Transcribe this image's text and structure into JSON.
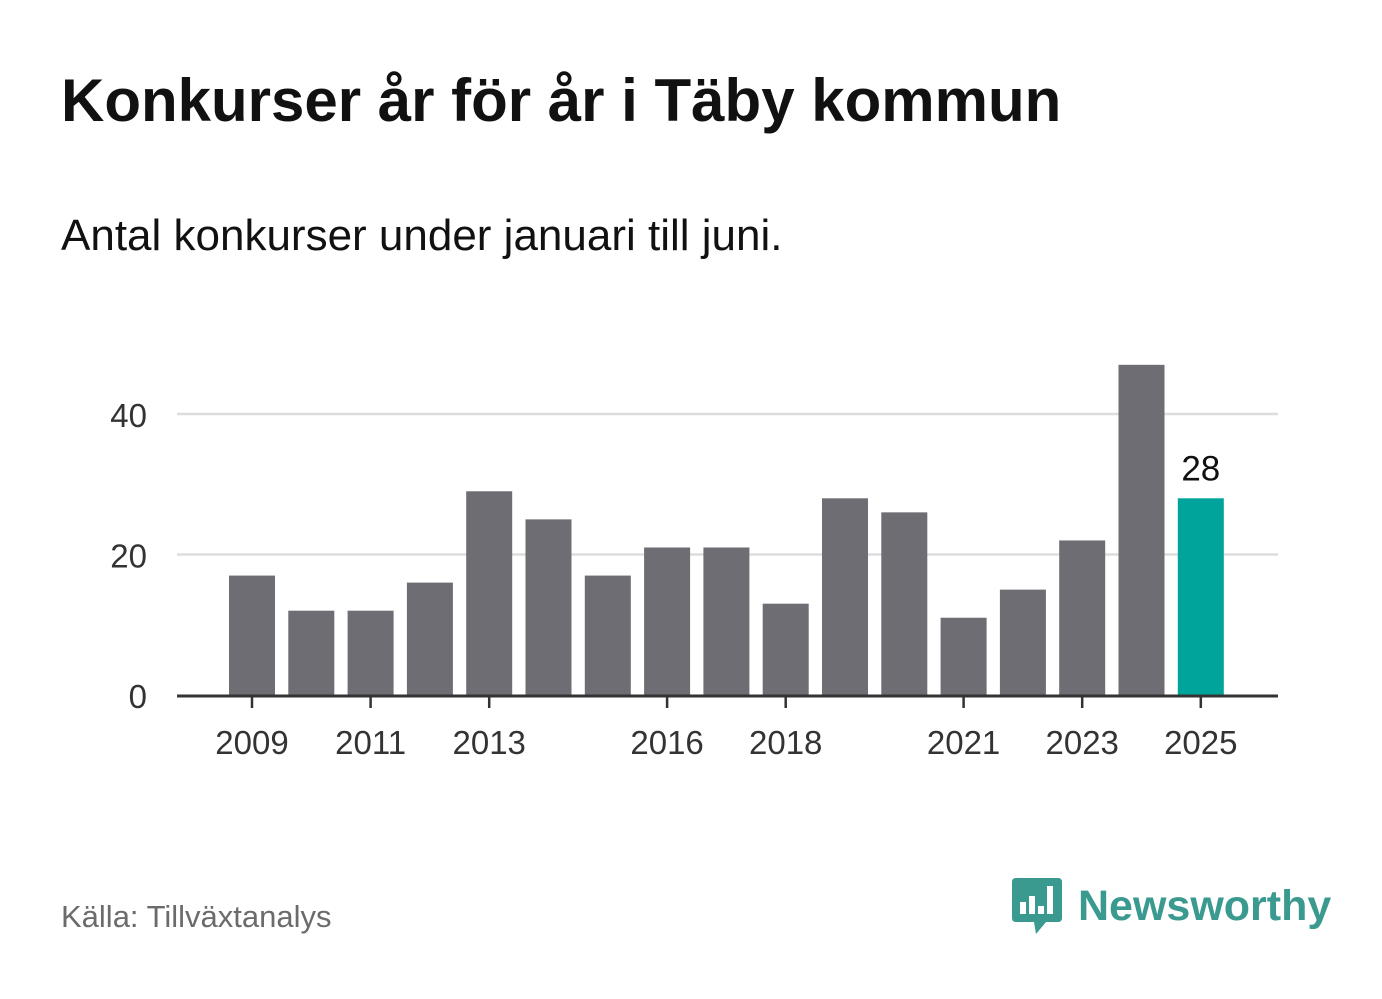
{
  "header": {
    "title": "Konkurser år för år i Täby kommun",
    "subtitle": "Antal konkurser under januari till juni."
  },
  "footer": {
    "source": "Källa: Tillväxtanalys",
    "brand": "Newsworthy",
    "brand_icon": "bar-chart-speech-bubble-icon"
  },
  "colors": {
    "bar": "#6e6d73",
    "highlight": "#00a49a",
    "grid": "#dddddd",
    "axis": "#333333",
    "brand": "#3b9a90"
  },
  "chart_data": {
    "type": "bar",
    "title": "Konkurser år för år i Täby kommun",
    "subtitle": "Antal konkurser under januari till juni.",
    "xlabel": "",
    "ylabel": "",
    "categories": [
      "2009",
      "2010",
      "2011",
      "2012",
      "2013",
      "2014",
      "2015",
      "2016",
      "2017",
      "2018",
      "2019",
      "2020",
      "2021",
      "2022",
      "2023",
      "2024",
      "2025"
    ],
    "x_tick_labels": [
      "2009",
      "2011",
      "2013",
      "2016",
      "2018",
      "2021",
      "2023",
      "2025"
    ],
    "values": [
      17,
      12,
      12,
      16,
      29,
      25,
      17,
      21,
      21,
      13,
      28,
      26,
      11,
      15,
      22,
      47,
      28
    ],
    "y_ticks": [
      0,
      20,
      40
    ],
    "ylim": [
      0,
      50
    ],
    "grid": true,
    "highlight_category": "2025",
    "data_labels": [
      {
        "category": "2025",
        "value": 28
      }
    ]
  }
}
